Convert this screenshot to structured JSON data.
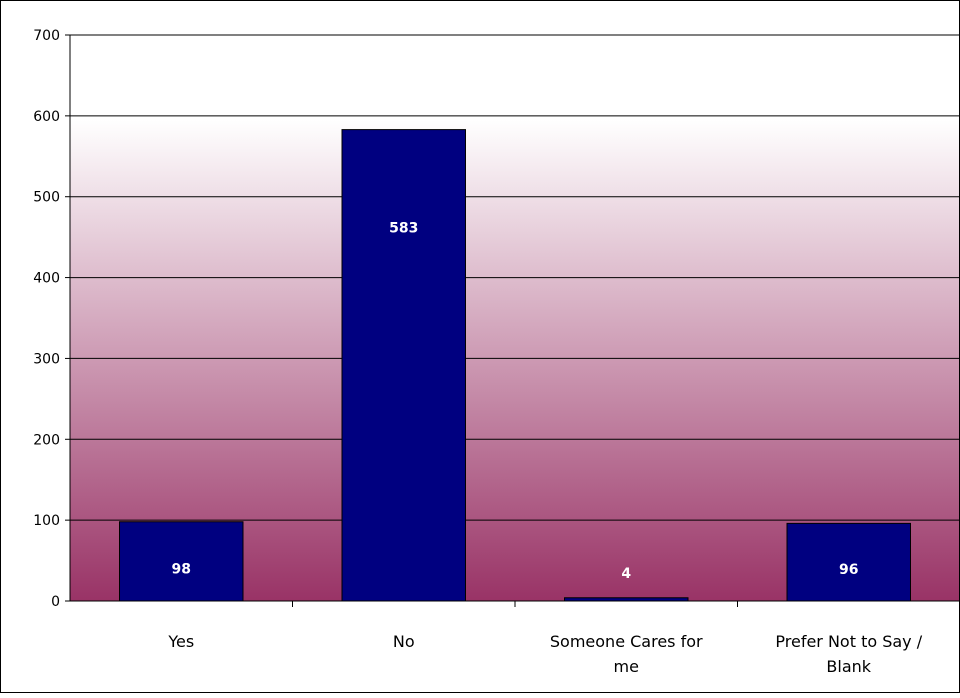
{
  "chart_data": {
    "type": "bar",
    "title": "",
    "xlabel": "",
    "ylabel": "",
    "categories": [
      "Yes",
      "No",
      "Someone Cares for me",
      "Prefer Not to Say / Blank"
    ],
    "category_lines": [
      [
        "Yes"
      ],
      [
        "No"
      ],
      [
        "Someone Cares for",
        "me"
      ],
      [
        "Prefer Not to Say /",
        "Blank"
      ]
    ],
    "values": [
      98,
      583,
      4,
      96
    ],
    "ylim": [
      0,
      700
    ],
    "yticks": [
      0,
      100,
      200,
      300,
      400,
      500,
      600,
      700
    ],
    "grid": true,
    "legend": "none",
    "colors": {
      "bar_fill": "#000080",
      "bar_stroke": "#000000",
      "label_text": "#ffffff",
      "gradient_top": "#ffffff",
      "gradient_bottom": "#993366",
      "grid": "#000000"
    }
  }
}
